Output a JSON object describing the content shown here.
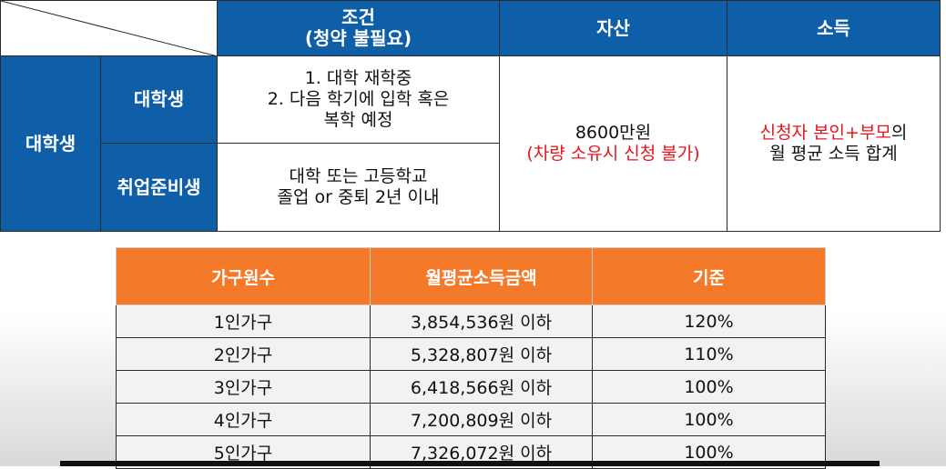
{
  "eligibility_table": {
    "header": {
      "condition": "조건",
      "condition_note": "(청약 불필요)",
      "asset": "자산",
      "income": "소득"
    },
    "group_label": "대학생",
    "rows": [
      {
        "category": "대학생",
        "condition_lines": [
          "1. 대학 재학중",
          "2.  다음 학기에 입학 혹은",
          "복학 예정"
        ]
      },
      {
        "category": "취업준비생",
        "condition_lines": [
          "대학 또는 고등학교",
          "졸업 or 중퇴 2년 이내"
        ]
      }
    ],
    "asset_value": "8600만원",
    "asset_note": "(차량 소유시 신청 불가)",
    "income_highlight": "신청자 본인+부모",
    "income_suffix": "의",
    "income_line2": "월 평균 소득 합계"
  },
  "income_table": {
    "headers": [
      "가구원수",
      "월평균소득금액",
      "기준"
    ],
    "rows": [
      {
        "household": "1인가구",
        "amount": "3,854,536원 이하",
        "ratio": "120%"
      },
      {
        "household": "2인가구",
        "amount": "5,328,807원 이하",
        "ratio": "110%"
      },
      {
        "household": "3인가구",
        "amount": "6,418,566원 이하",
        "ratio": "100%"
      },
      {
        "household": "4인가구",
        "amount": "7,200,809원 이하",
        "ratio": "100%"
      },
      {
        "household": "5인가구",
        "amount": "7,326,072원 이하",
        "ratio": "100%"
      }
    ]
  },
  "colors": {
    "header_blue": "#0f5fa8",
    "header_orange": "#f47a2a",
    "highlight_red": "#e8141c",
    "row_bg": "#f2f2f2"
  }
}
